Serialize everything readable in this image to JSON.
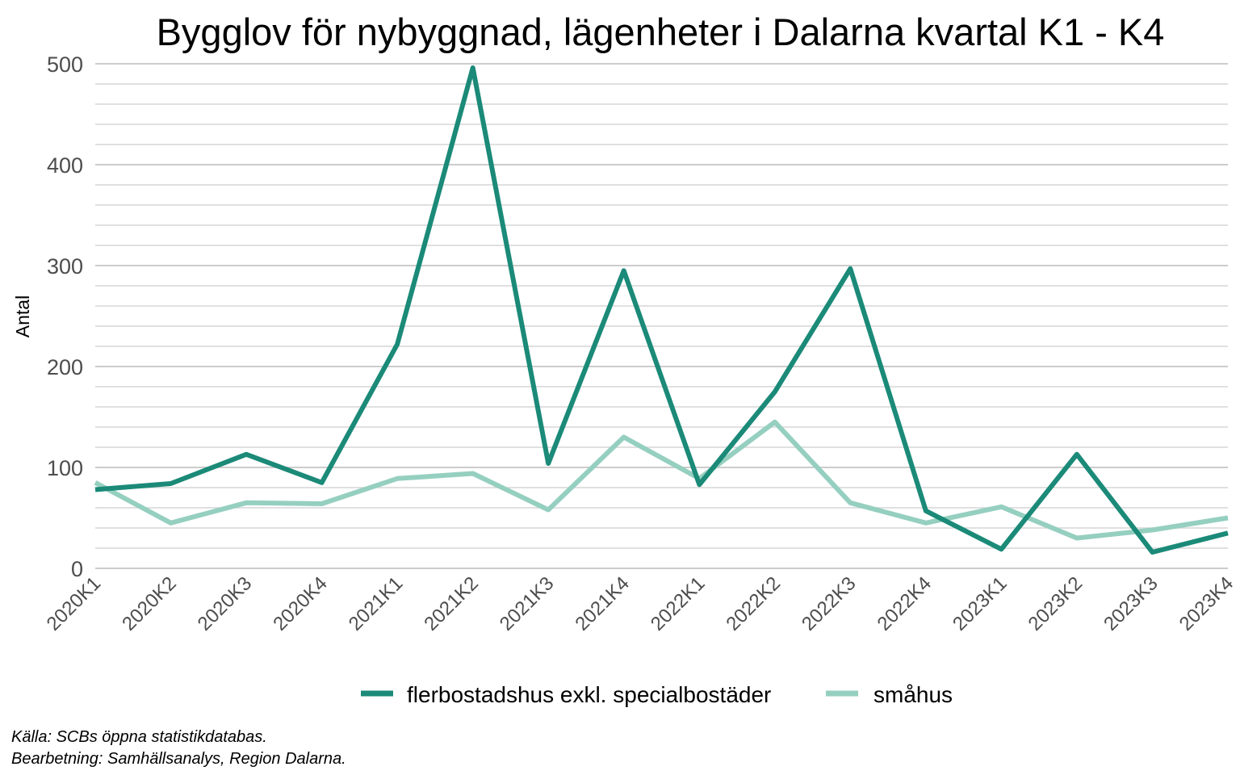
{
  "chart_data": {
    "type": "line",
    "title": "Bygglov för nybyggnad, lägenheter i Dalarna kvartal K1 - K4",
    "xlabel": "",
    "ylabel": "Antal",
    "ylim": [
      0,
      500
    ],
    "yticks": [
      "0",
      "100",
      "200",
      "300",
      "400",
      "500"
    ],
    "grid": true,
    "legend_position": "bottom",
    "categories": [
      "2020K1",
      "2020K2",
      "2020K3",
      "2020K4",
      "2021K1",
      "2021K2",
      "2021K3",
      "2021K4",
      "2022K1",
      "2022K2",
      "2022K3",
      "2022K4",
      "2023K1",
      "2023K2",
      "2023K3",
      "2023K4"
    ],
    "series": [
      {
        "name": "flerbostadshus exkl. specialbostäder",
        "color": "#1b8a78",
        "values": [
          78,
          84,
          113,
          85,
          222,
          496,
          104,
          295,
          83,
          175,
          297,
          57,
          19,
          113,
          16,
          35
        ]
      },
      {
        "name": "småhus",
        "color": "#95cfbf",
        "values": [
          85,
          45,
          65,
          64,
          89,
          94,
          58,
          130,
          89,
          145,
          65,
          45,
          61,
          30,
          38,
          50
        ]
      }
    ],
    "caption": [
      "Källa: SCBs öppna statistikdatabas.",
      "Bearbetning: Samhällsanalys, Region Dalarna."
    ]
  }
}
